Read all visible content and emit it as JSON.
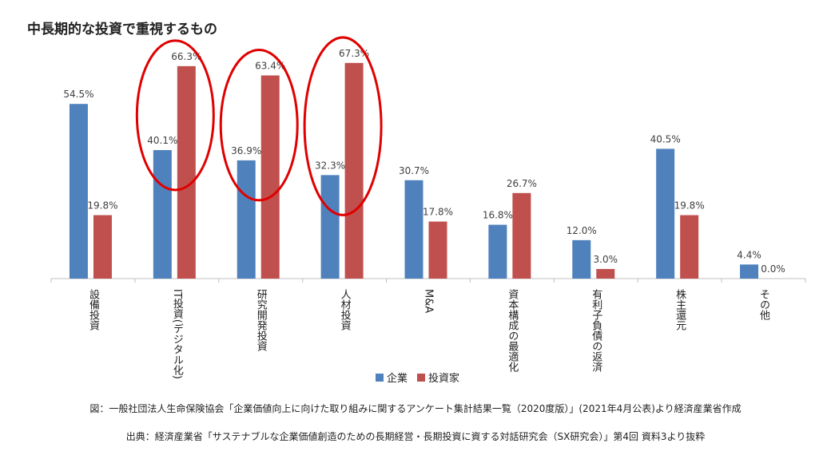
{
  "chart_data": {
    "type": "bar",
    "title": "中長期的な投資で重視するもの",
    "categories": [
      "設備投資",
      "IT投資(デジタル化)",
      "研究開発投資",
      "人材投資",
      "M&A",
      "資本構成の最適化",
      "有利子負債の返済",
      "株主還元",
      "その他"
    ],
    "series": [
      {
        "name": "企業",
        "values": [
          54.5,
          40.1,
          36.9,
          32.3,
          30.7,
          16.8,
          12.0,
          40.5,
          4.4
        ],
        "color": "#4F81BD"
      },
      {
        "name": "投資家",
        "values": [
          19.8,
          66.3,
          63.4,
          67.3,
          17.8,
          26.7,
          3.0,
          19.8,
          0.0
        ],
        "color": "#C0504D"
      }
    ],
    "value_labels": {
      "企業": [
        "54.5%",
        "40.1%",
        "36.9%",
        "32.3%",
        "30.7%",
        "16.8%",
        "12.0%",
        "40.5%",
        "4.4%"
      ],
      "投資家": [
        "19.8%",
        "66.3%",
        "63.4%",
        "67.3%",
        "17.8%",
        "26.7%",
        "3.0%",
        "19.8%",
        "0.0%"
      ]
    },
    "ylim": [
      0,
      70
    ],
    "legend_position": "bottom",
    "highlight_color": "#E00000",
    "highlighted_categories": [
      1,
      2,
      3
    ]
  },
  "legend": {
    "company": "企業",
    "investor": "投資家"
  },
  "sources": {
    "line1": "図：一般社団法人生命保険協会「企業価値向上に向けた取り組みに関するアンケート集計結果一覧（2020度版）」(2021年4月公表)より経済産業省作成",
    "line2": "出典：経済産業省「サステナブルな企業価値創造のための長期経営・長期投資に資する対話研究会（SX研究会）」第4回 資料3より抜粋"
  }
}
